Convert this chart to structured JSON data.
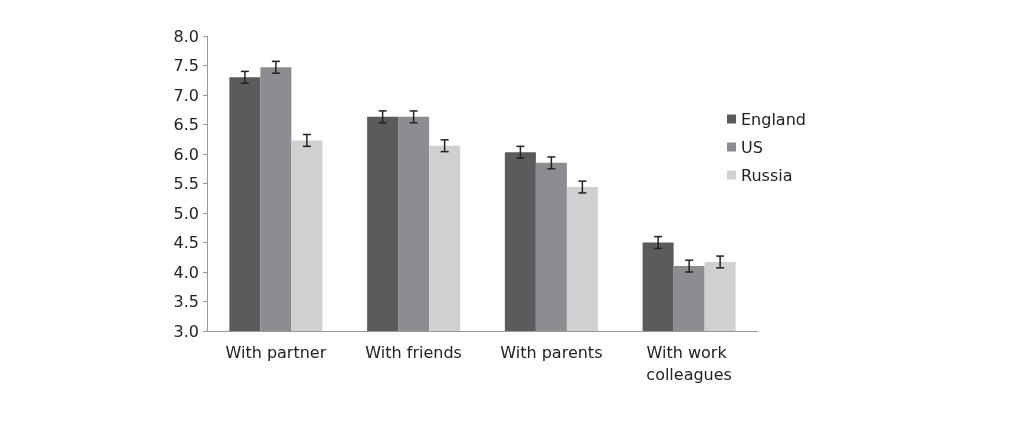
{
  "chart_data": {
    "type": "bar",
    "categories": [
      "With partner",
      "With friends",
      "With parents",
      "With work colleagues"
    ],
    "series": [
      {
        "name": "England",
        "color": "#5b5b5d",
        "values": [
          7.3,
          6.63,
          6.03,
          4.5
        ],
        "errors": [
          0.1,
          0.1,
          0.1,
          0.1
        ]
      },
      {
        "name": "US",
        "color": "#8c8d90",
        "values": [
          7.47,
          6.63,
          5.85,
          4.1
        ],
        "errors": [
          0.1,
          0.1,
          0.1,
          0.1
        ]
      },
      {
        "name": "Russia",
        "color": "#cfd0d2",
        "values": [
          6.23,
          6.14,
          5.44,
          4.17
        ],
        "errors": [
          0.1,
          0.1,
          0.1,
          0.1
        ]
      }
    ],
    "ylim": [
      3,
      8
    ],
    "yticks": [
      {
        "value": 3,
        "label": "3.0"
      },
      3.5,
      {
        "value": 4,
        "label": "4.0"
      },
      4.5,
      {
        "value": 5,
        "label": "5.0"
      },
      5.5,
      {
        "value": 6,
        "label": "6.0"
      },
      6.5,
      {
        "value": 7,
        "label": "7.0"
      },
      7.5,
      {
        "value": 8,
        "label": "8.0"
      }
    ],
    "grid": false,
    "legend": "right"
  }
}
